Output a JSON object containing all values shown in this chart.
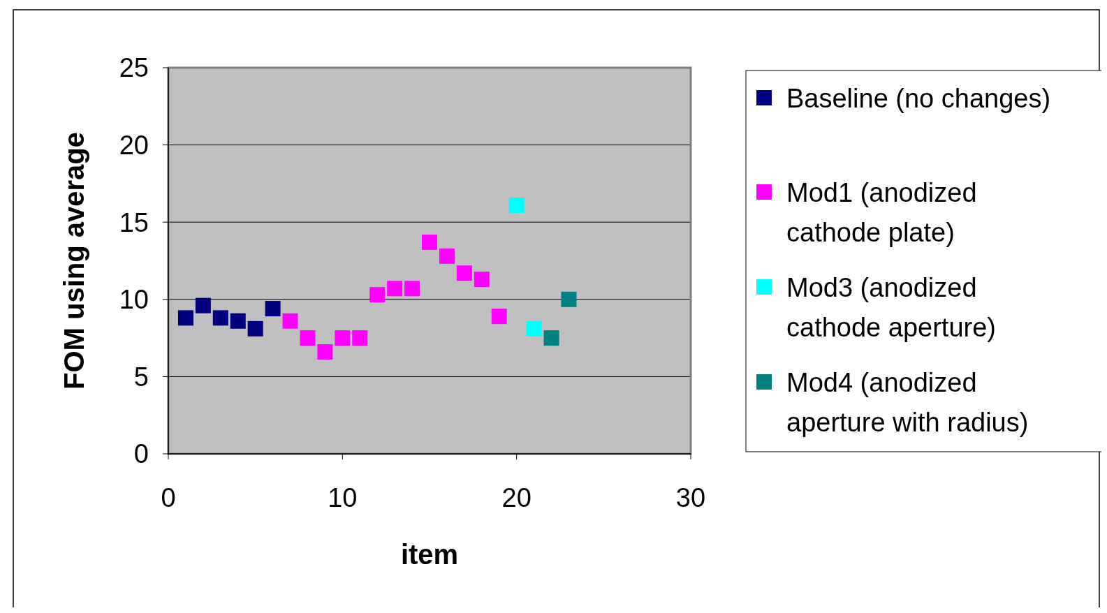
{
  "chart_data": {
    "type": "scatter",
    "xlabel": "item",
    "ylabel": "FOM using average",
    "xlim": [
      0,
      30
    ],
    "xticks": [
      0,
      10,
      20,
      30
    ],
    "ylim": [
      0,
      25
    ],
    "yticks": [
      0,
      5,
      10,
      15,
      20,
      25
    ],
    "grid": "y",
    "legend": "right",
    "marker": "square",
    "series": [
      {
        "name": "Baseline (no changes)",
        "color": "#000080",
        "x": [
          1,
          2,
          3,
          4,
          5,
          6
        ],
        "values": [
          8.8,
          9.6,
          8.8,
          8.6,
          8.1,
          9.4
        ]
      },
      {
        "name": "Mod1 (anodized cathode plate)",
        "color": "#ff00ff",
        "x": [
          7,
          8,
          9,
          10,
          11,
          12,
          13,
          14,
          15,
          16,
          17,
          18,
          19
        ],
        "values": [
          8.6,
          7.5,
          6.6,
          7.5,
          7.5,
          10.3,
          10.7,
          10.7,
          13.7,
          12.8,
          11.7,
          11.3,
          8.9
        ]
      },
      {
        "name": "Mod3 (anodized cathode aperture)",
        "color": "#00ffff",
        "x": [
          20,
          21
        ],
        "values": [
          16.1,
          8.1
        ]
      },
      {
        "name": "Mod4 (anodized aperture with radius)",
        "color": "#008080",
        "x": [
          22,
          23
        ],
        "values": [
          7.5,
          10.0
        ]
      }
    ]
  }
}
